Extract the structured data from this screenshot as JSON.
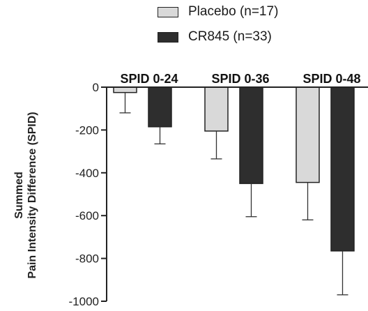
{
  "chart_data": {
    "type": "bar",
    "title": "",
    "xlabel": "",
    "ylabel": [
      "Summed",
      "Pain Intensity Difference (SPID)"
    ],
    "ylim": [
      -1000,
      0
    ],
    "yticks": [
      0,
      -200,
      -400,
      -600,
      -800,
      -1000
    ],
    "categories": [
      "SPID 0-24",
      "SPID 0-36",
      "SPID 0-48"
    ],
    "series": [
      {
        "name": "Placebo (n=17)",
        "color": "#d9d9d9",
        "values": [
          -25,
          -205,
          -445
        ],
        "error": [
          95,
          130,
          175
        ]
      },
      {
        "name": "CR845 (n=33)",
        "color": "#2e2e2e",
        "values": [
          -185,
          -450,
          -765
        ],
        "error": [
          80,
          155,
          205
        ]
      }
    ],
    "legend": "top",
    "grid": false
  }
}
